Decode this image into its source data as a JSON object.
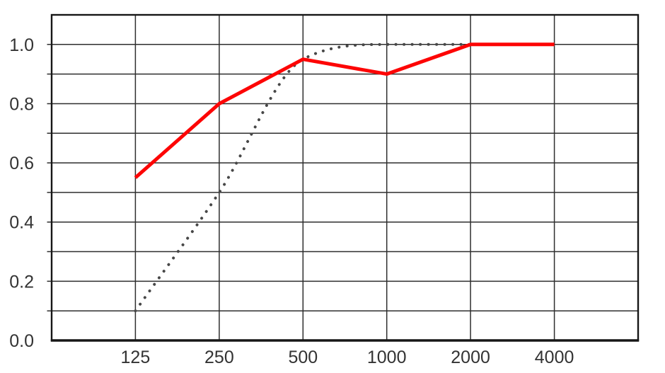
{
  "chart_data": {
    "type": "line",
    "title": "",
    "xlabel": "",
    "ylabel": "",
    "x_tick_labels": [
      "125",
      "250",
      "500",
      "1000",
      "2000",
      "4000"
    ],
    "y_tick_labels": [
      "0.0",
      "0.2",
      "0.4",
      "0.6",
      "0.8",
      "1.0"
    ],
    "y_label_step": 0.2,
    "y_grid_step": 0.1,
    "ylim": [
      0,
      1.1
    ],
    "grid": "on",
    "legend": "none",
    "series": [
      {
        "name": "dotted-gray-series",
        "line_style": "dotted",
        "smooth": true,
        "color": "#474747",
        "values": [
          0.1,
          0.5,
          0.95,
          1.0,
          1.0,
          1.0
        ]
      },
      {
        "name": "red-solid-series",
        "line_style": "solid",
        "smooth": false,
        "color": "#fd0505",
        "values": [
          0.55,
          0.8,
          0.95,
          0.9,
          1.0,
          1.0
        ]
      }
    ]
  },
  "style": {
    "grid_color": "#2e2e2e",
    "frame_color": "#161616",
    "label_color": "#333333",
    "background": "#ffffff"
  }
}
